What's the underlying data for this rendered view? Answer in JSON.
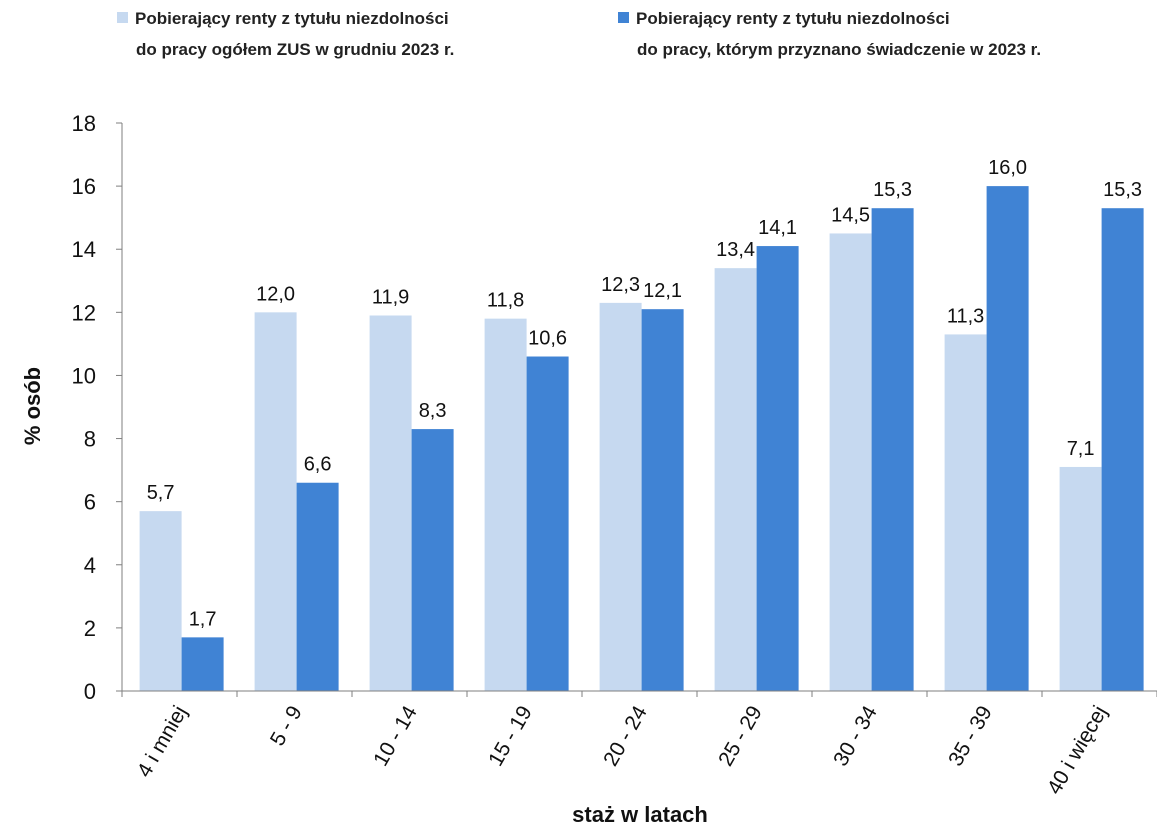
{
  "chart_data": {
    "type": "bar",
    "categories": [
      "4 i mniej",
      "5 - 9",
      "10 - 14",
      "15 - 19",
      "20 - 24",
      "25 - 29",
      "30 - 34",
      "35 - 39",
      "40 i więcej"
    ],
    "series": [
      {
        "name_lines": [
          "Pobierający renty z tytułu niezdolności",
          "do pracy ogółem ZUS w grudniu 2023 r."
        ],
        "color": "#c6d9f0",
        "values": [
          5.7,
          12.0,
          11.9,
          11.8,
          12.3,
          13.4,
          14.5,
          11.3,
          7.1
        ],
        "labels": [
          "5,7",
          "12,0",
          "11,9",
          "11,8",
          "12,3",
          "13,4",
          "14,5",
          "11,3",
          "7,1"
        ]
      },
      {
        "name_lines": [
          "Pobierający renty z tytułu niezdolności",
          "do pracy, którym przyznano świadczenie w 2023 r."
        ],
        "color": "#4083d4",
        "values": [
          1.7,
          6.6,
          8.3,
          10.6,
          12.1,
          14.1,
          15.3,
          16.0,
          15.3
        ],
        "labels": [
          "1,7",
          "6,6",
          "8,3",
          "10,6",
          "12,1",
          "14,1",
          "15,3",
          "16,0",
          "15,3"
        ]
      }
    ],
    "ylim": [
      0,
      18
    ],
    "yticks": [
      0,
      2,
      4,
      6,
      8,
      10,
      12,
      14,
      16,
      18
    ],
    "xlabel": "staż w latach",
    "ylabel": "% osób",
    "grid": false,
    "legend_position": "top"
  }
}
